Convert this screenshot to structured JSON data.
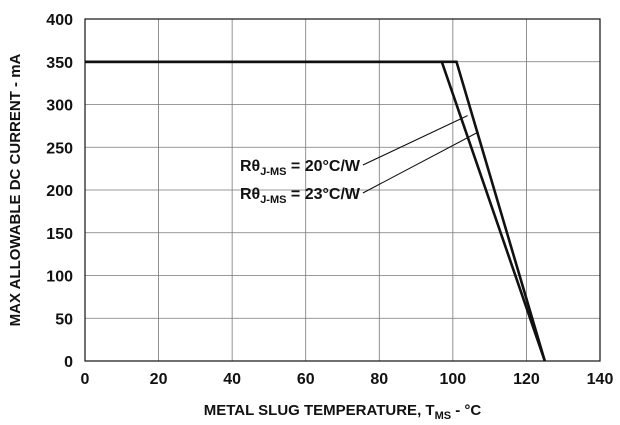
{
  "chart_data": {
    "type": "line",
    "xlabel_main": "METAL SLUG TEMPERATURE, T",
    "xlabel_sub": "MS",
    "xlabel_tail": " - °C",
    "ylabel": "MAX ALLOWABLE DC CURRENT - mA",
    "xlim": [
      0,
      140
    ],
    "ylim": [
      0,
      400
    ],
    "x_ticks": [
      0,
      20,
      40,
      60,
      80,
      100,
      120,
      140
    ],
    "y_ticks": [
      0,
      50,
      100,
      150,
      200,
      250,
      300,
      350,
      400
    ],
    "grid": true,
    "series": [
      {
        "name": "RθJ-MS = 20°C/W",
        "points": [
          [
            0,
            350
          ],
          [
            101,
            350
          ],
          [
            125,
            0
          ]
        ]
      },
      {
        "name": "RθJ-MS = 23°C/W",
        "points": [
          [
            0,
            350
          ],
          [
            97,
            350
          ],
          [
            125,
            0
          ]
        ]
      }
    ],
    "annotations": [
      {
        "prefix": "Rθ",
        "sub": "J-MS",
        "suffix": " = 20°C/W",
        "target": [
          104,
          287
        ]
      },
      {
        "prefix": "Rθ",
        "sub": "J-MS",
        "suffix": " = 23°C/W",
        "target": [
          107,
          268
        ]
      }
    ]
  }
}
